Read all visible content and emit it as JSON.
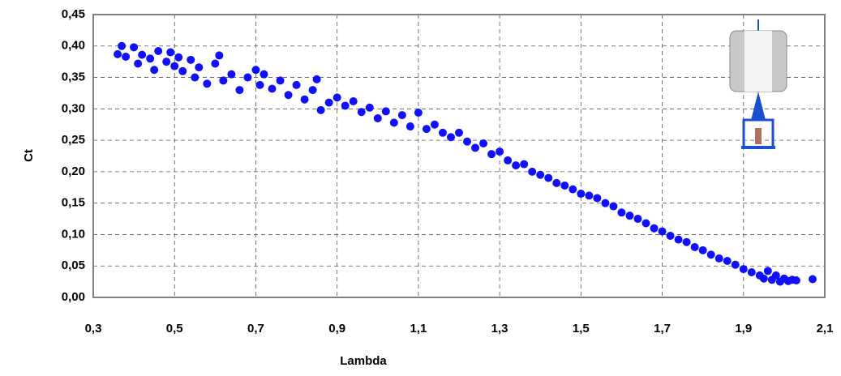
{
  "chart_data": {
    "type": "scatter",
    "xlabel": "Lambda",
    "ylabel": "Ct",
    "xlim": [
      0.3,
      2.1
    ],
    "ylim": [
      0,
      0.45
    ],
    "xticks": [
      {
        "value": 0.3,
        "label": "0,3"
      },
      {
        "value": 0.5,
        "label": "0,5"
      },
      {
        "value": 0.7,
        "label": "0,7"
      },
      {
        "value": 0.9,
        "label": "0,9"
      },
      {
        "value": 1.1,
        "label": "1,1"
      },
      {
        "value": 1.3,
        "label": "1,3"
      },
      {
        "value": 1.5,
        "label": "1,5"
      },
      {
        "value": 1.7,
        "label": "1,7"
      },
      {
        "value": 1.9,
        "label": "1,9"
      },
      {
        "value": 2.1,
        "label": "2,1"
      }
    ],
    "yticks": [
      {
        "value": 0,
        "label": "0,00"
      },
      {
        "value": 0.05,
        "label": "0,05"
      },
      {
        "value": 0.1,
        "label": "0,10"
      },
      {
        "value": 0.15,
        "label": "0,15"
      },
      {
        "value": 0.2,
        "label": "0,20"
      },
      {
        "value": 0.25,
        "label": "0,25"
      },
      {
        "value": 0.3,
        "label": "0,30"
      },
      {
        "value": 0.35,
        "label": "0,35"
      },
      {
        "value": 0.4,
        "label": "0,40"
      },
      {
        "value": 0.45,
        "label": "0,45"
      }
    ],
    "grid": true,
    "color": "#1010ff",
    "x": [
      0.36,
      0.37,
      0.38,
      0.4,
      0.41,
      0.42,
      0.44,
      0.45,
      0.46,
      0.48,
      0.49,
      0.5,
      0.51,
      0.52,
      0.54,
      0.55,
      0.56,
      0.58,
      0.6,
      0.61,
      0.62,
      0.64,
      0.66,
      0.68,
      0.7,
      0.71,
      0.72,
      0.74,
      0.76,
      0.78,
      0.8,
      0.82,
      0.84,
      0.85,
      0.86,
      0.88,
      0.9,
      0.92,
      0.94,
      0.96,
      0.98,
      1.0,
      1.02,
      1.04,
      1.06,
      1.08,
      1.1,
      1.12,
      1.14,
      1.16,
      1.18,
      1.2,
      1.22,
      1.24,
      1.26,
      1.28,
      1.3,
      1.32,
      1.34,
      1.36,
      1.38,
      1.4,
      1.42,
      1.44,
      1.46,
      1.48,
      1.5,
      1.52,
      1.54,
      1.56,
      1.58,
      1.6,
      1.62,
      1.64,
      1.66,
      1.68,
      1.7,
      1.72,
      1.74,
      1.76,
      1.78,
      1.8,
      1.82,
      1.84,
      1.86,
      1.88,
      1.9,
      1.92,
      1.94,
      1.95,
      1.96,
      1.97,
      1.98,
      1.99,
      2.0,
      2.01,
      2.02,
      2.03,
      2.07
    ],
    "y": [
      0.387,
      0.4,
      0.383,
      0.398,
      0.372,
      0.386,
      0.38,
      0.362,
      0.392,
      0.375,
      0.39,
      0.368,
      0.382,
      0.36,
      0.378,
      0.35,
      0.366,
      0.34,
      0.372,
      0.385,
      0.345,
      0.355,
      0.33,
      0.35,
      0.362,
      0.338,
      0.355,
      0.332,
      0.345,
      0.322,
      0.338,
      0.315,
      0.33,
      0.347,
      0.298,
      0.31,
      0.318,
      0.305,
      0.312,
      0.295,
      0.302,
      0.285,
      0.296,
      0.278,
      0.29,
      0.272,
      0.294,
      0.268,
      0.275,
      0.262,
      0.255,
      0.262,
      0.248,
      0.238,
      0.245,
      0.228,
      0.232,
      0.218,
      0.21,
      0.212,
      0.2,
      0.195,
      0.19,
      0.182,
      0.178,
      0.172,
      0.165,
      0.162,
      0.158,
      0.15,
      0.145,
      0.135,
      0.13,
      0.125,
      0.118,
      0.11,
      0.105,
      0.098,
      0.092,
      0.088,
      0.08,
      0.075,
      0.068,
      0.062,
      0.058,
      0.052,
      0.045,
      0.04,
      0.035,
      0.03,
      0.042,
      0.028,
      0.035,
      0.025,
      0.03,
      0.026,
      0.028,
      0.027,
      0.029
    ]
  }
}
